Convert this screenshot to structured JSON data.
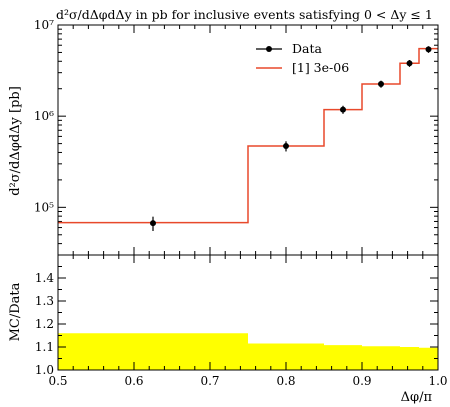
{
  "chart_data": [
    {
      "type": "line",
      "title": "d²σ/dΔφdΔy in pb for inclusive events satisfying 0 < Δy ≤ 1",
      "ylabel": "d²σ/dΔφdΔy [pb]",
      "yscale": "log",
      "ylim": [
        30000,
        10000000
      ],
      "xlim": [
        0.5,
        1.0
      ],
      "yticks": [
        {
          "value": 100000,
          "label": "10⁵"
        },
        {
          "value": 1000000,
          "label": "10⁶"
        },
        {
          "value": 10000000,
          "label": "10⁷"
        }
      ],
      "legend_position": "top-right",
      "series": [
        {
          "name": "Data",
          "kind": "points",
          "color": "#000000",
          "x": [
            0.625,
            0.8,
            0.875,
            0.925,
            0.9625,
            0.9875
          ],
          "y": [
            67000,
            470000,
            1180000,
            2250000,
            3800000,
            5400000
          ],
          "err": [
            12000,
            60000,
            120000,
            200000,
            330000,
            450000
          ]
        },
        {
          "name": "[1] 3e-06",
          "kind": "step",
          "color": "#e8492b",
          "edges": [
            0.5,
            0.75,
            0.85,
            0.9,
            0.95,
            0.975,
            1.0
          ],
          "values": [
            68000,
            470000,
            1180000,
            2250000,
            3800000,
            5500000
          ]
        }
      ]
    },
    {
      "type": "area",
      "ylabel": "MC/Data",
      "xlabel": "Δφ/π",
      "xlim": [
        0.5,
        1.0
      ],
      "ylim": [
        1.0,
        1.5
      ],
      "xticks": [
        0.5,
        0.6,
        0.7,
        0.8,
        0.9,
        1.0
      ],
      "xtick_labels": [
        "0.5",
        "0.6",
        "0.7",
        "0.8",
        "0.9",
        "1.0"
      ],
      "yticks": [
        1.0,
        1.1,
        1.2,
        1.3,
        1.4
      ],
      "ytick_labels": [
        "1.0",
        "1.1",
        "1.2",
        "1.3",
        "1.4"
      ],
      "band_color": "#ffff00",
      "band": {
        "edges": [
          0.5,
          0.75,
          0.85,
          0.9,
          0.95,
          0.975,
          1.0
        ],
        "values": [
          1.16,
          1.115,
          1.108,
          1.103,
          1.1,
          1.097
        ]
      }
    }
  ]
}
